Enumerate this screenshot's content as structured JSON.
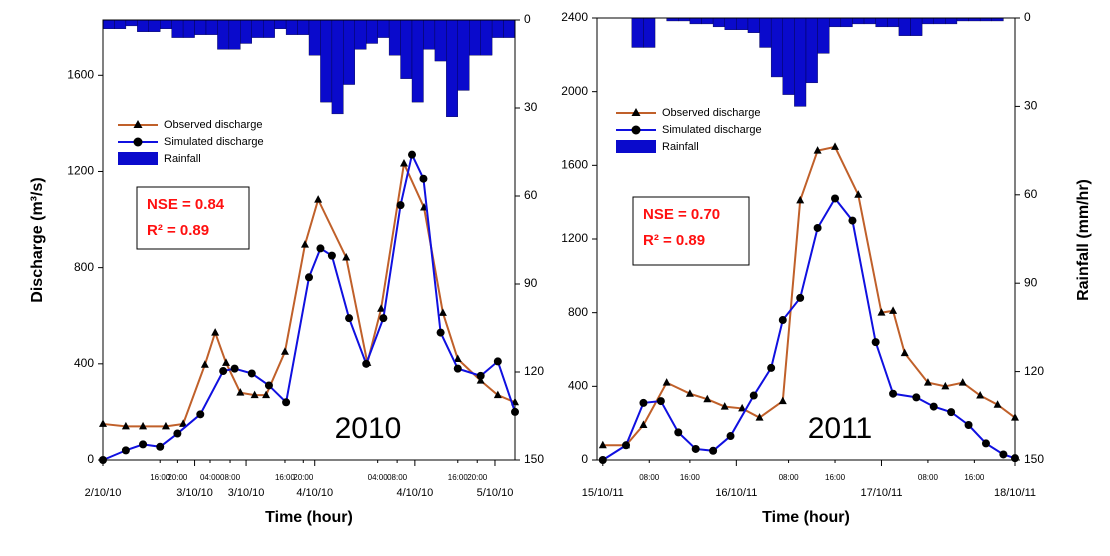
{
  "chart_data": [
    {
      "type": "combo",
      "x_label": "Time (hour)",
      "y_label": "Discharge (m³/s)",
      "year_label": "2010",
      "annotation": [
        "NSE = 0.84",
        "R² = 0.89"
      ],
      "xlim": [
        0,
        72
      ],
      "ylim": [
        0,
        1830
      ],
      "y2lim": [
        150,
        0
      ],
      "xticks": [
        {
          "value": 0,
          "label": "2/10/10"
        },
        {
          "value": 16,
          "label": "3/10/10"
        },
        {
          "value": 25,
          "label": "3/10/10"
        },
        {
          "value": 37,
          "label": "4/10/10"
        },
        {
          "value": 54.5,
          "label": "4/10/10"
        },
        {
          "value": 68.5,
          "label": "5/10/10"
        }
      ],
      "xminorticks": [
        {
          "value": 10,
          "label": "16:00"
        },
        {
          "value": 13,
          "label": "20:00"
        },
        {
          "value": 18.7,
          "label": "04:00"
        },
        {
          "value": 22.2,
          "label": "08:00"
        },
        {
          "value": 31.8,
          "label": "16:00"
        },
        {
          "value": 35,
          "label": "20:00"
        },
        {
          "value": 48,
          "label": "04:00"
        },
        {
          "value": 51.4,
          "label": "08:00"
        },
        {
          "value": 62,
          "label": "16:00"
        },
        {
          "value": 65.4,
          "label": "20:00"
        }
      ],
      "yticks": [
        0,
        400,
        800,
        1200,
        1600
      ],
      "y2ticks": [
        0,
        30,
        60,
        90,
        120,
        150
      ],
      "series": [
        {
          "name": "Observed discharge",
          "color": "#c0602a",
          "type": "line",
          "marker": "triangle",
          "x": [
            0,
            4,
            7,
            11,
            14,
            17.8,
            19.6,
            21.5,
            24,
            26.5,
            28.5,
            31.8,
            35.3,
            37.6,
            42.5,
            46.2,
            48.6,
            52.6,
            56.1,
            59.4,
            62,
            66,
            69,
            72
          ],
          "values": [
            150,
            140,
            140,
            140,
            150,
            396,
            530,
            404,
            280,
            270,
            270,
            450,
            896,
            1083,
            842,
            404,
            629,
            1233,
            1050,
            612,
            420,
            330,
            270,
            240
          ]
        },
        {
          "name": "Simulated discharge",
          "color": "#1010e0",
          "type": "line",
          "marker": "circle",
          "x": [
            0,
            4,
            7,
            10,
            13,
            17,
            21,
            23,
            26,
            29,
            32,
            36,
            38,
            40,
            43,
            46,
            49,
            52,
            54,
            56,
            59,
            62,
            66,
            69,
            72
          ],
          "values": [
            0,
            40,
            65,
            55,
            110,
            190,
            370,
            380,
            360,
            310,
            240,
            760,
            880,
            850,
            590,
            400,
            590,
            1060,
            1270,
            1170,
            530,
            380,
            350,
            410,
            200
          ]
        },
        {
          "name": "Rainfall",
          "color": "#0a0acc",
          "type": "bar",
          "axis": "y2",
          "x": [
            1,
            3,
            5,
            7,
            9,
            11,
            13,
            15,
            17,
            19,
            21,
            23,
            25,
            27,
            29,
            31,
            33,
            35,
            37,
            39,
            41,
            43,
            45,
            47,
            49,
            51,
            53,
            55,
            57,
            59,
            61,
            63,
            65,
            67,
            69,
            71
          ],
          "values": [
            3,
            3,
            2,
            4,
            4,
            3,
            6,
            6,
            5,
            5,
            10,
            10,
            8,
            6,
            6,
            3,
            5,
            5,
            12,
            28,
            32,
            22,
            10,
            8,
            6,
            12,
            20,
            28,
            10,
            14,
            33,
            24,
            12,
            12,
            6,
            6
          ]
        }
      ]
    },
    {
      "type": "combo",
      "x_label": "Time (hour)",
      "y2_label": "Rainfall (mm/hr)",
      "year_label": "2011",
      "annotation": [
        "NSE = 0.70",
        "R² = 0.89"
      ],
      "xlim": [
        0,
        72
      ],
      "ylim": [
        0,
        2400
      ],
      "y2lim": [
        150,
        0
      ],
      "xticks": [
        {
          "value": 1,
          "label": "15/10/11"
        },
        {
          "value": 24,
          "label": "16/10/11"
        },
        {
          "value": 49,
          "label": "17/10/11"
        },
        {
          "value": 72,
          "label": "18/10/11"
        }
      ],
      "xminorticks": [
        {
          "value": 9,
          "label": "08:00"
        },
        {
          "value": 16,
          "label": "16:00"
        },
        {
          "value": 33,
          "label": "08:00"
        },
        {
          "value": 41,
          "label": "16:00"
        },
        {
          "value": 57,
          "label": "08:00"
        },
        {
          "value": 65,
          "label": "16:00"
        }
      ],
      "yticks": [
        0,
        400,
        800,
        1200,
        1600,
        2000,
        2400
      ],
      "y2ticks": [
        0,
        30,
        60,
        90,
        120,
        150
      ],
      "series": [
        {
          "name": "Observed discharge",
          "color": "#c0602a",
          "type": "line",
          "marker": "triangle",
          "x": [
            1,
            5,
            8,
            12,
            16,
            19,
            22,
            25,
            28,
            32,
            35,
            38,
            41,
            45,
            49,
            51,
            53,
            57,
            60,
            63,
            66,
            69,
            72
          ],
          "values": [
            80,
            80,
            190,
            420,
            360,
            330,
            290,
            280,
            230,
            320,
            1410,
            1680,
            1700,
            1440,
            800,
            810,
            580,
            420,
            400,
            420,
            350,
            300,
            230
          ]
        },
        {
          "name": "Simulated discharge",
          "color": "#1010e0",
          "type": "line",
          "marker": "circle",
          "x": [
            1,
            5,
            8,
            11,
            14,
            17,
            20,
            23,
            27,
            30,
            32,
            35,
            38,
            41,
            44,
            48,
            51,
            55,
            58,
            61,
            64,
            67,
            70,
            72
          ],
          "values": [
            0,
            80,
            310,
            320,
            150,
            60,
            50,
            130,
            350,
            500,
            760,
            880,
            1260,
            1420,
            1300,
            640,
            360,
            340,
            290,
            260,
            190,
            90,
            30,
            10
          ]
        },
        {
          "name": "Rainfall",
          "color": "#0a0acc",
          "type": "bar",
          "axis": "y2",
          "x": [
            1,
            3,
            5,
            7,
            9,
            11,
            13,
            15,
            17,
            19,
            21,
            23,
            25,
            27,
            29,
            31,
            33,
            35,
            37,
            39,
            41,
            43,
            45,
            47,
            49,
            51,
            53,
            55,
            57,
            59,
            61,
            63,
            65,
            67,
            69,
            71
          ],
          "values": [
            0,
            0,
            0,
            10,
            10,
            0,
            1,
            1,
            2,
            2,
            3,
            4,
            4,
            5,
            10,
            20,
            26,
            30,
            22,
            12,
            3,
            3,
            2,
            2,
            3,
            3,
            6,
            6,
            2,
            2,
            2,
            1,
            1,
            1,
            1,
            0
          ]
        }
      ]
    }
  ]
}
